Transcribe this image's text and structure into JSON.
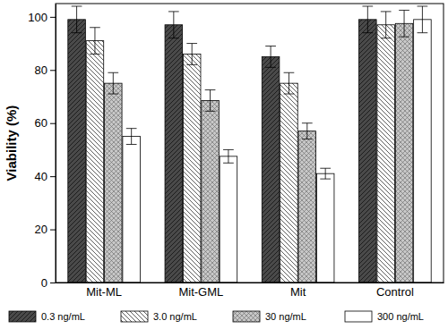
{
  "chart_data": {
    "type": "bar",
    "y_label": "Viability (%)",
    "categories": [
      "Mit-ML",
      "Mit-GML",
      "Mit",
      "Control"
    ],
    "series": [
      {
        "name": "0.3 ng/mL",
        "color": "#4a4a4a",
        "values": [
          99,
          97,
          85,
          99
        ],
        "errors": [
          5,
          5,
          4,
          5
        ]
      },
      {
        "name": "3.0 ng/mL",
        "color": "#ffffff",
        "values": [
          91,
          86,
          75,
          97
        ],
        "errors": [
          5,
          4,
          4,
          5
        ]
      },
      {
        "name": "30 ng/mL",
        "color": "#c8c8c8",
        "values": [
          75,
          68.5,
          57,
          97.5
        ],
        "errors": [
          4,
          4,
          3,
          5
        ]
      },
      {
        "name": "300 ng/mL",
        "color": "#ffffff",
        "values": [
          55,
          47.5,
          41,
          99
        ],
        "errors": [
          3,
          2.5,
          2,
          5
        ]
      }
    ],
    "ylim": [
      0,
      105
    ],
    "yticks": [
      0,
      20,
      40,
      60,
      80,
      100
    ],
    "grid": false,
    "legend": "bottom"
  }
}
